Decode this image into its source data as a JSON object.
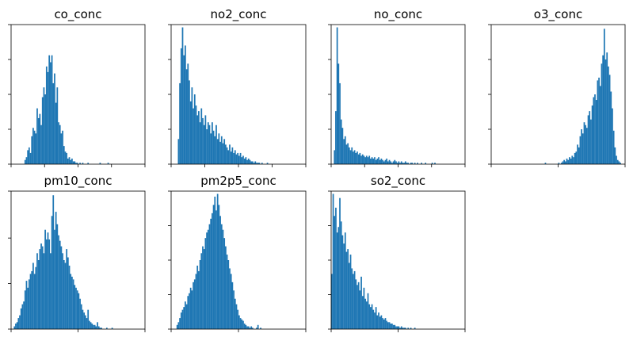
{
  "chart_data": [
    {
      "type": "bar",
      "title": "co_conc",
      "bar_color": "#1f77b4",
      "xlim": [
        0,
        100
      ],
      "ylim": [
        0,
        100
      ],
      "x_ticks": [
        0,
        25,
        50,
        75,
        100
      ],
      "y_ticks": [
        0,
        25,
        50,
        75,
        100
      ],
      "show_tick_labels": false,
      "bin_width": 1,
      "bins_start": [
        10
      ],
      "values": [
        3,
        5,
        10,
        12,
        8,
        20,
        26,
        24,
        22,
        40,
        33,
        36,
        28,
        48,
        55,
        50,
        70,
        66,
        78,
        73,
        78,
        58,
        65,
        44,
        55,
        30,
        28,
        22,
        24,
        13,
        9,
        8,
        4,
        5,
        3,
        4,
        2,
        2,
        1,
        1,
        0,
        1,
        0,
        1,
        0,
        0,
        0,
        1,
        0,
        0,
        0,
        0,
        0,
        0,
        0,
        0,
        1,
        0,
        0,
        0,
        0,
        0,
        1
      ]
    },
    {
      "type": "bar",
      "title": "no2_conc",
      "bar_color": "#1f77b4",
      "xlim": [
        0,
        100
      ],
      "ylim": [
        0,
        100
      ],
      "x_ticks": [
        0,
        25,
        50,
        75,
        100
      ],
      "y_ticks": [
        0,
        25,
        50,
        75,
        100
      ],
      "show_tick_labels": false,
      "bin_width": 1,
      "bins_start": [
        5
      ],
      "values": [
        18,
        58,
        83,
        98,
        78,
        85,
        68,
        72,
        60,
        45,
        55,
        40,
        50,
        42,
        35,
        38,
        30,
        40,
        33,
        28,
        35,
        25,
        30,
        28,
        22,
        30,
        24,
        20,
        28,
        18,
        22,
        16,
        20,
        15,
        18,
        14,
        12,
        10,
        14,
        9,
        12,
        8,
        10,
        7,
        8,
        6,
        8,
        5,
        6,
        4,
        5,
        3,
        4,
        3,
        2,
        2,
        1,
        2,
        1,
        1,
        1,
        0,
        1,
        0,
        0,
        0,
        1
      ]
    },
    {
      "type": "bar",
      "title": "no_conc",
      "bar_color": "#1f77b4",
      "xlim": [
        0,
        100
      ],
      "ylim": [
        0,
        100
      ],
      "x_ticks": [
        0,
        25,
        50,
        75,
        100
      ],
      "y_ticks": [
        0,
        25,
        50,
        75,
        100
      ],
      "show_tick_labels": false,
      "bin_width": 1,
      "bins_start": [
        2
      ],
      "values": [
        10,
        38,
        98,
        72,
        58,
        32,
        26,
        18,
        20,
        14,
        15,
        12,
        10,
        12,
        9,
        10,
        8,
        9,
        7,
        8,
        6,
        7,
        6,
        5,
        6,
        5,
        6,
        4,
        5,
        4,
        5,
        3,
        4,
        5,
        3,
        4,
        3,
        2,
        3,
        4,
        2,
        3,
        2,
        1,
        2,
        3,
        2,
        1,
        2,
        1,
        2,
        1,
        1,
        2,
        1,
        1,
        0,
        1,
        1,
        0,
        1,
        0,
        1,
        0,
        0,
        1,
        0,
        0,
        1,
        0,
        0,
        0,
        0,
        1,
        0,
        1
      ]
    },
    {
      "type": "bar",
      "title": "o3_conc",
      "bar_color": "#1f77b4",
      "xlim": [
        0,
        100
      ],
      "ylim": [
        0,
        100
      ],
      "x_ticks": [
        0,
        50,
        100
      ],
      "y_ticks": [
        0,
        25,
        50,
        75,
        100
      ],
      "show_tick_labels": false,
      "bin_width": 1,
      "bins_start": [
        40
      ],
      "values": [
        1,
        0,
        0,
        0,
        0,
        0,
        0,
        0,
        0,
        0,
        1,
        0,
        1,
        2,
        3,
        2,
        4,
        3,
        5,
        4,
        6,
        5,
        8,
        9,
        14,
        12,
        20,
        25,
        22,
        30,
        28,
        26,
        35,
        38,
        32,
        42,
        48,
        50,
        46,
        60,
        62,
        56,
        72,
        78,
        97,
        75,
        80,
        70,
        64,
        52,
        40,
        24,
        12,
        6,
        3,
        2,
        1
      ]
    },
    {
      "type": "bar",
      "title": "pm10_conc",
      "bar_color": "#1f77b4",
      "xlim": [
        0,
        100
      ],
      "ylim": [
        0,
        100
      ],
      "x_ticks": [
        0,
        50,
        100
      ],
      "y_ticks": [
        0,
        33,
        66,
        100
      ],
      "show_tick_labels": false,
      "bin_width": 1,
      "bins_start": [
        2
      ],
      "values": [
        2,
        4,
        5,
        8,
        10,
        15,
        18,
        20,
        28,
        35,
        30,
        36,
        40,
        42,
        48,
        40,
        45,
        55,
        50,
        58,
        62,
        60,
        55,
        72,
        65,
        70,
        65,
        55,
        82,
        97,
        72,
        85,
        76,
        68,
        64,
        60,
        55,
        50,
        48,
        58,
        52,
        46,
        40,
        38,
        36,
        32,
        30,
        28,
        26,
        22,
        18,
        14,
        12,
        10,
        8,
        14,
        6,
        5,
        4,
        3,
        3,
        2,
        5,
        2,
        1,
        1,
        0,
        0,
        0,
        1,
        0,
        0,
        0,
        1
      ]
    },
    {
      "type": "bar",
      "title": "pm2p5_conc",
      "bar_color": "#1f77b4",
      "xlim": [
        0,
        100
      ],
      "ylim": [
        0,
        100
      ],
      "x_ticks": [
        0,
        50,
        100
      ],
      "y_ticks": [
        0,
        25,
        50,
        75,
        100
      ],
      "show_tick_labels": false,
      "bin_width": 1,
      "bins_start": [
        4
      ],
      "values": [
        3,
        5,
        8,
        12,
        14,
        16,
        20,
        18,
        24,
        26,
        30,
        28,
        34,
        36,
        40,
        46,
        42,
        50,
        55,
        60,
        58,
        66,
        70,
        72,
        76,
        80,
        84,
        90,
        96,
        86,
        98,
        90,
        82,
        76,
        72,
        66,
        60,
        54,
        50,
        44,
        40,
        34,
        28,
        22,
        18,
        14,
        10,
        8,
        7,
        6,
        4,
        3,
        2,
        2,
        1,
        2,
        1,
        0,
        0,
        1,
        3,
        0,
        1
      ]
    },
    {
      "type": "bar",
      "title": "so2_conc",
      "bar_color": "#1f77b4",
      "xlim": [
        0,
        100
      ],
      "ylim": [
        0,
        100
      ],
      "x_ticks": [
        0,
        50,
        100
      ],
      "y_ticks": [
        0,
        25,
        50,
        75,
        100
      ],
      "show_tick_labels": false,
      "bin_width": 1,
      "bins_start": [
        0
      ],
      "values": [
        40,
        98,
        82,
        88,
        70,
        74,
        95,
        78,
        68,
        62,
        70,
        56,
        58,
        48,
        54,
        44,
        40,
        42,
        36,
        32,
        34,
        28,
        38,
        24,
        30,
        22,
        20,
        26,
        18,
        16,
        18,
        14,
        12,
        16,
        10,
        12,
        9,
        10,
        8,
        7,
        8,
        6,
        5,
        5,
        4,
        4,
        3,
        3,
        2,
        2,
        2,
        1,
        2,
        1,
        1,
        1,
        0,
        1,
        0,
        1,
        0,
        0,
        1
      ]
    }
  ]
}
